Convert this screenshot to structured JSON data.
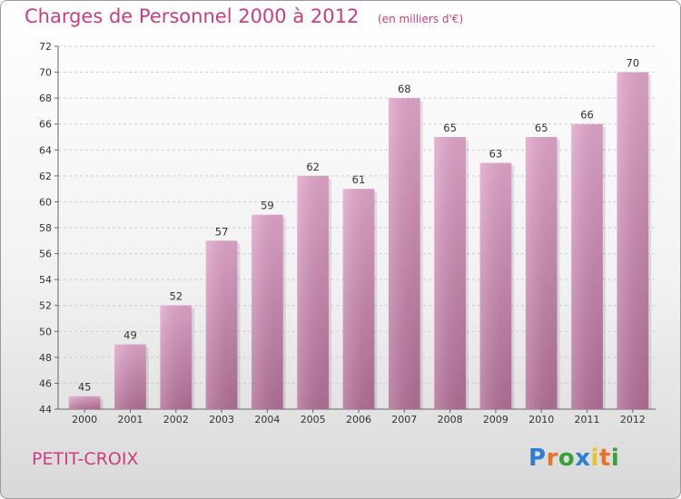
{
  "title": "Charges de Personnel 2000 à 2012",
  "subtitle": "(en milliers d'€)",
  "commune": "PETIT-CROIX",
  "logo": {
    "text": "Proxiti",
    "colors": [
      "#2e7fd1",
      "#e8732a",
      "#3a9e3a",
      "#2e7fd1",
      "#e8c32a",
      "#e8732a",
      "#3a9e3a"
    ]
  },
  "colors": {
    "accent": "#cc3d7f",
    "bar_top": "#e2a6cb",
    "bar_bottom": "#b26f97",
    "grid": "#cccccc"
  },
  "chart_data": {
    "type": "bar",
    "categories": [
      "2000",
      "2001",
      "2002",
      "2003",
      "2004",
      "2005",
      "2006",
      "2007",
      "2008",
      "2009",
      "2010",
      "2011",
      "2012"
    ],
    "values": [
      45,
      49,
      52,
      57,
      59,
      62,
      61,
      68,
      65,
      63,
      65,
      66,
      70
    ],
    "ylim": [
      44,
      72
    ],
    "yticks": [
      44,
      46,
      48,
      50,
      52,
      54,
      56,
      58,
      60,
      62,
      64,
      66,
      68,
      70,
      72
    ],
    "grid": "dashed horizontal",
    "xlabel": "",
    "ylabel": ""
  }
}
